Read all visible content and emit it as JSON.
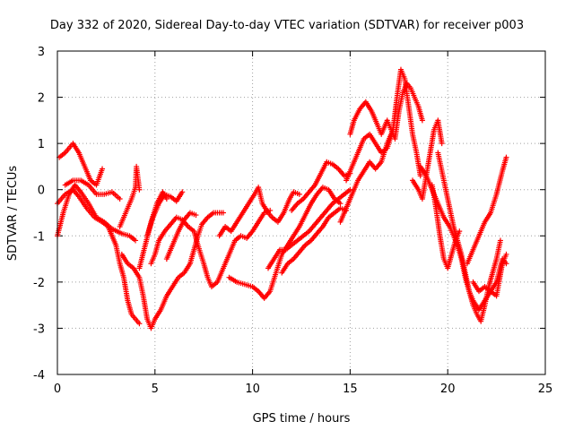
{
  "chart_data": {
    "type": "scatter",
    "title": "Day 332 of 2020, Sidereal Day-to-day VTEC variation (SDTVAR) for receiver p003",
    "xlabel": "GPS time / hours",
    "ylabel": "SDTVAR / TECUs",
    "xlim": [
      0,
      25
    ],
    "ylim": [
      -4,
      3
    ],
    "xticks": [
      0,
      5,
      10,
      15,
      20,
      25
    ],
    "yticks": [
      -4,
      -3,
      -2,
      -1,
      0,
      1,
      2,
      3
    ],
    "grid": true,
    "marker": "+",
    "series_color": "#ff0000",
    "series": [
      {
        "name": "s1",
        "points": [
          [
            0.1,
            0.7
          ],
          [
            0.4,
            0.8
          ],
          [
            0.8,
            1.0
          ],
          [
            1.1,
            0.8
          ],
          [
            1.4,
            0.5
          ],
          [
            1.7,
            0.2
          ],
          [
            2.0,
            0.1
          ],
          [
            2.3,
            0.45
          ]
        ]
      },
      {
        "name": "s2",
        "points": [
          [
            0.0,
            -1.0
          ],
          [
            0.3,
            -0.5
          ],
          [
            0.6,
            -0.1
          ],
          [
            0.9,
            0.1
          ],
          [
            1.2,
            -0.05
          ],
          [
            1.6,
            -0.3
          ],
          [
            2.0,
            -0.6
          ],
          [
            2.4,
            -0.7
          ],
          [
            2.8,
            -0.85
          ],
          [
            3.3,
            -0.95
          ],
          [
            3.7,
            -1.0
          ],
          [
            4.0,
            -1.1
          ]
        ]
      },
      {
        "name": "s3",
        "points": [
          [
            0.4,
            0.1
          ],
          [
            0.8,
            0.2
          ],
          [
            1.2,
            0.2
          ],
          [
            1.6,
            0.1
          ],
          [
            2.0,
            -0.1
          ],
          [
            2.4,
            -0.1
          ],
          [
            2.8,
            -0.05
          ],
          [
            3.2,
            -0.2
          ]
        ]
      },
      {
        "name": "s4",
        "points": [
          [
            0.0,
            -0.3
          ],
          [
            0.4,
            -0.1
          ],
          [
            0.8,
            0.0
          ],
          [
            1.1,
            -0.15
          ],
          [
            1.5,
            -0.4
          ],
          [
            1.9,
            -0.6
          ],
          [
            2.3,
            -0.7
          ],
          [
            2.6,
            -0.8
          ],
          [
            3.0,
            -1.2
          ],
          [
            3.2,
            -1.6
          ],
          [
            3.4,
            -1.9
          ],
          [
            3.6,
            -2.4
          ],
          [
            3.8,
            -2.7
          ],
          [
            4.0,
            -2.8
          ],
          [
            4.2,
            -2.9
          ]
        ]
      },
      {
        "name": "s5",
        "points": [
          [
            3.2,
            -0.8
          ],
          [
            3.4,
            -0.6
          ],
          [
            3.6,
            -0.4
          ],
          [
            3.8,
            -0.2
          ],
          [
            4.0,
            0.05
          ],
          [
            4.05,
            0.5
          ],
          [
            4.2,
            0.0
          ]
        ]
      },
      {
        "name": "s6",
        "points": [
          [
            3.3,
            -1.4
          ],
          [
            3.6,
            -1.6
          ],
          [
            3.9,
            -1.7
          ],
          [
            4.2,
            -1.9
          ],
          [
            4.4,
            -2.3
          ],
          [
            4.6,
            -2.8
          ],
          [
            4.8,
            -3.0
          ],
          [
            5.0,
            -2.8
          ],
          [
            5.3,
            -2.6
          ],
          [
            5.6,
            -2.3
          ],
          [
            5.9,
            -2.1
          ],
          [
            6.2,
            -1.9
          ],
          [
            6.5,
            -1.8
          ],
          [
            6.8,
            -1.6
          ],
          [
            7.0,
            -1.3
          ],
          [
            7.2,
            -1.0
          ],
          [
            7.4,
            -0.75
          ],
          [
            7.7,
            -0.6
          ],
          [
            8.0,
            -0.5
          ],
          [
            8.5,
            -0.5
          ]
        ]
      },
      {
        "name": "s7",
        "points": [
          [
            4.2,
            -1.7
          ],
          [
            4.5,
            -1.2
          ],
          [
            4.8,
            -0.7
          ],
          [
            5.1,
            -0.3
          ],
          [
            5.4,
            -0.05
          ],
          [
            5.6,
            -0.2
          ]
        ]
      },
      {
        "name": "s8",
        "points": [
          [
            4.6,
            -1.0
          ],
          [
            4.9,
            -0.6
          ],
          [
            5.2,
            -0.3
          ],
          [
            5.5,
            -0.1
          ],
          [
            5.8,
            -0.15
          ],
          [
            6.1,
            -0.25
          ],
          [
            6.4,
            -0.05
          ]
        ]
      },
      {
        "name": "s9",
        "points": [
          [
            5.6,
            -1.5
          ],
          [
            5.9,
            -1.2
          ],
          [
            6.2,
            -0.9
          ],
          [
            6.5,
            -0.65
          ],
          [
            6.8,
            -0.5
          ],
          [
            7.1,
            -0.55
          ]
        ]
      },
      {
        "name": "s10",
        "points": [
          [
            4.8,
            -1.6
          ],
          [
            5.0,
            -1.4
          ],
          [
            5.2,
            -1.1
          ],
          [
            5.5,
            -0.9
          ],
          [
            5.8,
            -0.75
          ],
          [
            6.1,
            -0.6
          ],
          [
            6.4,
            -0.65
          ],
          [
            6.7,
            -0.8
          ],
          [
            7.0,
            -0.9
          ],
          [
            7.2,
            -1.2
          ],
          [
            7.5,
            -1.6
          ],
          [
            7.7,
            -1.9
          ],
          [
            7.9,
            -2.1
          ],
          [
            8.2,
            -2.0
          ],
          [
            8.5,
            -1.7
          ],
          [
            8.8,
            -1.4
          ],
          [
            9.1,
            -1.1
          ],
          [
            9.4,
            -1.0
          ],
          [
            9.7,
            -1.05
          ],
          [
            10.0,
            -0.9
          ],
          [
            10.3,
            -0.7
          ],
          [
            10.6,
            -0.5
          ],
          [
            10.9,
            -0.45
          ]
        ]
      },
      {
        "name": "s11",
        "points": [
          [
            8.3,
            -1.0
          ],
          [
            8.6,
            -0.8
          ],
          [
            8.9,
            -0.9
          ],
          [
            9.2,
            -0.7
          ],
          [
            9.5,
            -0.5
          ],
          [
            9.8,
            -0.3
          ],
          [
            10.1,
            -0.1
          ],
          [
            10.3,
            0.05
          ],
          [
            10.5,
            -0.3
          ],
          [
            10.8,
            -0.5
          ],
          [
            11.0,
            -0.6
          ],
          [
            11.3,
            -0.7
          ],
          [
            11.6,
            -0.5
          ],
          [
            11.9,
            -0.2
          ],
          [
            12.1,
            -0.05
          ],
          [
            12.4,
            -0.1
          ]
        ]
      },
      {
        "name": "s12",
        "points": [
          [
            8.8,
            -1.9
          ],
          [
            9.2,
            -2.0
          ],
          [
            9.6,
            -2.05
          ],
          [
            10.0,
            -2.1
          ],
          [
            10.3,
            -2.2
          ],
          [
            10.6,
            -2.35
          ],
          [
            10.9,
            -2.2
          ],
          [
            11.2,
            -1.8
          ],
          [
            11.5,
            -1.4
          ],
          [
            11.8,
            -1.2
          ],
          [
            12.1,
            -1.0
          ],
          [
            12.4,
            -0.8
          ],
          [
            12.7,
            -0.55
          ],
          [
            13.0,
            -0.3
          ],
          [
            13.3,
            -0.1
          ],
          [
            13.6,
            0.05
          ],
          [
            13.9,
            0.0
          ],
          [
            14.2,
            -0.2
          ],
          [
            14.5,
            -0.3
          ]
        ]
      },
      {
        "name": "s13",
        "points": [
          [
            10.8,
            -1.7
          ],
          [
            11.1,
            -1.5
          ],
          [
            11.4,
            -1.3
          ],
          [
            11.7,
            -1.3
          ],
          [
            12.0,
            -1.2
          ],
          [
            12.3,
            -1.1
          ],
          [
            12.6,
            -1.0
          ],
          [
            12.9,
            -0.9
          ],
          [
            13.2,
            -0.75
          ],
          [
            13.5,
            -0.6
          ],
          [
            13.8,
            -0.45
          ],
          [
            14.1,
            -0.3
          ],
          [
            14.4,
            -0.2
          ],
          [
            14.7,
            -0.1
          ],
          [
            15.0,
            0.0
          ]
        ]
      },
      {
        "name": "s14",
        "points": [
          [
            12.0,
            -0.45
          ],
          [
            12.3,
            -0.3
          ],
          [
            12.6,
            -0.2
          ],
          [
            12.9,
            -0.05
          ],
          [
            13.2,
            0.1
          ],
          [
            13.5,
            0.35
          ],
          [
            13.8,
            0.6
          ],
          [
            14.1,
            0.55
          ],
          [
            14.4,
            0.45
          ],
          [
            14.7,
            0.3
          ],
          [
            15.0,
            0.35
          ]
        ]
      },
      {
        "name": "s15",
        "points": [
          [
            11.5,
            -1.8
          ],
          [
            11.8,
            -1.6
          ],
          [
            12.1,
            -1.5
          ],
          [
            12.4,
            -1.35
          ],
          [
            12.7,
            -1.2
          ],
          [
            13.0,
            -1.1
          ],
          [
            13.3,
            -0.95
          ],
          [
            13.6,
            -0.8
          ],
          [
            13.9,
            -0.6
          ],
          [
            14.2,
            -0.5
          ],
          [
            14.5,
            -0.4
          ],
          [
            14.8,
            -0.45
          ]
        ]
      },
      {
        "name": "s16",
        "points": [
          [
            15.0,
            1.2
          ],
          [
            15.2,
            1.5
          ],
          [
            15.5,
            1.75
          ],
          [
            15.8,
            1.9
          ],
          [
            16.1,
            1.7
          ],
          [
            16.4,
            1.4
          ],
          [
            16.6,
            1.2
          ],
          [
            16.9,
            1.5
          ],
          [
            17.1,
            1.3
          ],
          [
            17.3,
            1.1
          ],
          [
            17.5,
            1.7
          ],
          [
            17.7,
            2.1
          ],
          [
            17.9,
            2.3
          ],
          [
            18.1,
            2.2
          ],
          [
            18.3,
            2.0
          ],
          [
            18.5,
            1.8
          ],
          [
            18.7,
            1.5
          ]
        ]
      },
      {
        "name": "s17",
        "points": [
          [
            14.8,
            0.2
          ],
          [
            15.1,
            0.5
          ],
          [
            15.4,
            0.8
          ],
          [
            15.7,
            1.1
          ],
          [
            16.0,
            1.2
          ],
          [
            16.3,
            1.0
          ],
          [
            16.6,
            0.8
          ],
          [
            16.9,
            0.9
          ],
          [
            17.2,
            1.3
          ],
          [
            17.4,
            2.0
          ],
          [
            17.6,
            2.6
          ],
          [
            17.8,
            2.4
          ],
          [
            18.0,
            1.8
          ],
          [
            18.2,
            1.2
          ],
          [
            18.4,
            0.8
          ],
          [
            18.6,
            0.3
          ]
        ]
      },
      {
        "name": "s18",
        "points": [
          [
            14.5,
            -0.7
          ],
          [
            14.8,
            -0.4
          ],
          [
            15.1,
            -0.1
          ],
          [
            15.4,
            0.2
          ],
          [
            15.7,
            0.4
          ],
          [
            16.0,
            0.6
          ],
          [
            16.3,
            0.45
          ],
          [
            16.6,
            0.6
          ],
          [
            16.9,
            1.0
          ],
          [
            17.2,
            1.3
          ]
        ]
      },
      {
        "name": "s19",
        "points": [
          [
            18.2,
            0.2
          ],
          [
            18.5,
            0.0
          ],
          [
            18.7,
            -0.2
          ],
          [
            18.9,
            0.3
          ],
          [
            19.1,
            0.8
          ],
          [
            19.3,
            1.3
          ],
          [
            19.5,
            1.5
          ],
          [
            19.7,
            1.0
          ]
        ]
      },
      {
        "name": "s20",
        "points": [
          [
            18.6,
            0.5
          ],
          [
            18.9,
            0.3
          ],
          [
            19.2,
            0.0
          ],
          [
            19.5,
            -0.3
          ],
          [
            19.8,
            -0.6
          ],
          [
            20.1,
            -0.8
          ],
          [
            20.3,
            -1.0
          ],
          [
            20.5,
            -1.2
          ],
          [
            20.7,
            -1.5
          ],
          [
            20.9,
            -1.9
          ],
          [
            21.1,
            -2.2
          ],
          [
            21.3,
            -2.4
          ],
          [
            21.6,
            -2.6
          ],
          [
            21.9,
            -2.4
          ],
          [
            22.2,
            -2.2
          ],
          [
            22.5,
            -2.3
          ],
          [
            22.8,
            -1.6
          ],
          [
            23.0,
            -1.4
          ]
        ]
      },
      {
        "name": "s21",
        "points": [
          [
            19.2,
            0.1
          ],
          [
            19.4,
            -0.4
          ],
          [
            19.6,
            -1.0
          ],
          [
            19.8,
            -1.5
          ],
          [
            20.0,
            -1.7
          ],
          [
            20.2,
            -1.4
          ],
          [
            20.4,
            -1.1
          ],
          [
            20.6,
            -0.9
          ]
        ]
      },
      {
        "name": "s22",
        "points": [
          [
            19.5,
            0.8
          ],
          [
            19.7,
            0.4
          ],
          [
            19.9,
            0.0
          ],
          [
            20.1,
            -0.4
          ],
          [
            20.3,
            -0.8
          ],
          [
            20.5,
            -1.1
          ],
          [
            20.7,
            -1.4
          ],
          [
            20.9,
            -1.8
          ],
          [
            21.1,
            -2.2
          ],
          [
            21.3,
            -2.5
          ],
          [
            21.5,
            -2.7
          ],
          [
            21.7,
            -2.85
          ],
          [
            21.9,
            -2.5
          ],
          [
            22.1,
            -2.1
          ],
          [
            22.3,
            -1.8
          ],
          [
            22.5,
            -1.5
          ],
          [
            22.7,
            -1.1
          ]
        ]
      },
      {
        "name": "s23",
        "points": [
          [
            21.0,
            -1.6
          ],
          [
            21.3,
            -1.3
          ],
          [
            21.6,
            -1.0
          ],
          [
            21.9,
            -0.7
          ],
          [
            22.2,
            -0.5
          ],
          [
            22.5,
            -0.1
          ],
          [
            22.8,
            0.4
          ],
          [
            23.0,
            0.7
          ]
        ]
      },
      {
        "name": "s24",
        "points": [
          [
            21.3,
            -2.0
          ],
          [
            21.6,
            -2.2
          ],
          [
            21.9,
            -2.1
          ],
          [
            22.2,
            -2.2
          ],
          [
            22.5,
            -2.0
          ],
          [
            22.8,
            -1.5
          ],
          [
            23.0,
            -1.6
          ]
        ]
      }
    ]
  }
}
